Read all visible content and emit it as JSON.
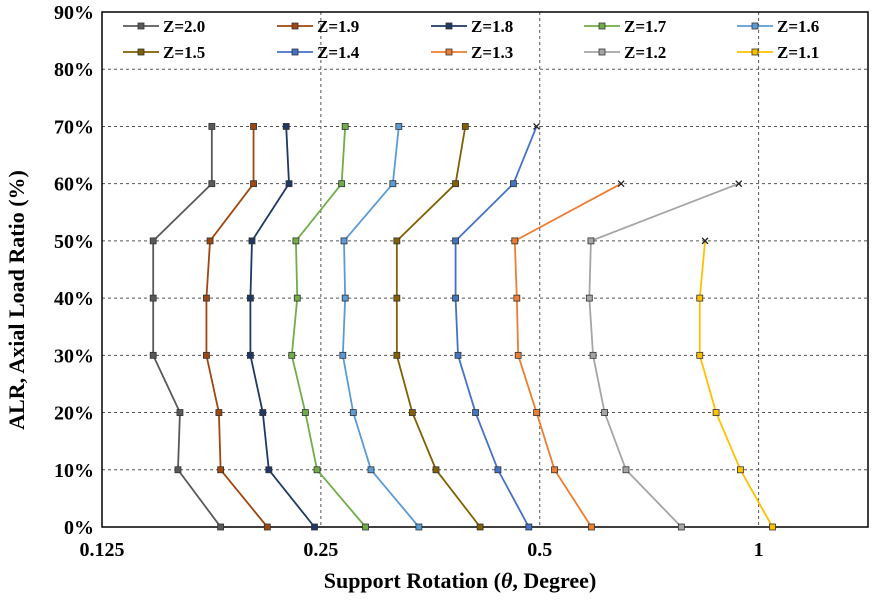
{
  "chart_data": {
    "type": "line",
    "xlabel_prefix": "Support Rotation (",
    "xlabel_symbol": "θ",
    "xlabel_suffix": ", Degree)",
    "ylabel": "ALR, Axial Load Ratio (%)",
    "xscale": "log2",
    "xlim": [
      0.125,
      1.414
    ],
    "ylim": [
      0,
      90
    ],
    "xticks": [
      {
        "value": 0.125,
        "label": "0.125"
      },
      {
        "value": 0.25,
        "label": "0.25"
      },
      {
        "value": 0.5,
        "label": "0.5"
      },
      {
        "value": 1,
        "label": "1"
      }
    ],
    "yticks": [
      {
        "value": 0,
        "label": "0%"
      },
      {
        "value": 10,
        "label": "10%"
      },
      {
        "value": 20,
        "label": "20%"
      },
      {
        "value": 30,
        "label": "30%"
      },
      {
        "value": 40,
        "label": "40%"
      },
      {
        "value": 50,
        "label": "50%"
      },
      {
        "value": 60,
        "label": "60%"
      },
      {
        "value": 70,
        "label": "70%"
      },
      {
        "value": 80,
        "label": "80%"
      },
      {
        "value": 90,
        "label": "90%"
      }
    ],
    "grid": "dashed",
    "legend_position": "top",
    "y": [
      0,
      10,
      20,
      30,
      40,
      50,
      60,
      70
    ],
    "series": [
      {
        "name": "Z=2.0",
        "color": "#595959",
        "x": [
          0.182,
          0.159,
          0.16,
          0.147,
          0.147,
          0.147,
          0.177,
          0.177
        ],
        "last_marker": "square"
      },
      {
        "name": "Z=1.9",
        "color": "#a0460f",
        "x": [
          0.211,
          0.182,
          0.181,
          0.174,
          0.174,
          0.176,
          0.202,
          0.202
        ],
        "last_marker": "square"
      },
      {
        "name": "Z=1.8",
        "color": "#1f3864",
        "x": [
          0.245,
          0.212,
          0.208,
          0.2,
          0.2,
          0.201,
          0.226,
          0.224
        ],
        "last_marker": "square"
      },
      {
        "name": "Z=1.7",
        "color": "#70ad47",
        "x": [
          0.288,
          0.247,
          0.238,
          0.228,
          0.232,
          0.231,
          0.267,
          0.27
        ],
        "last_marker": "square"
      },
      {
        "name": "Z=1.6",
        "color": "#5b9bd5",
        "x": [
          0.341,
          0.293,
          0.277,
          0.268,
          0.27,
          0.269,
          0.314,
          0.32
        ],
        "last_marker": "square"
      },
      {
        "name": "Z=1.5",
        "color": "#806000",
        "x": [
          0.414,
          0.36,
          0.334,
          0.318,
          0.318,
          0.318,
          0.383,
          0.395
        ],
        "last_marker": "square"
      },
      {
        "name": "Z=1.4",
        "color": "#4472c4",
        "x": [
          0.483,
          0.438,
          0.408,
          0.386,
          0.383,
          0.383,
          0.46,
          0.495
        ],
        "last_marker": "x"
      },
      {
        "name": "Z=1.3",
        "color": "#ed7d31",
        "x": [
          0.589,
          0.524,
          0.495,
          0.467,
          0.465,
          0.462,
          0.647,
          null
        ],
        "last_marker": "x"
      },
      {
        "name": "Z=1.2",
        "color": "#a5a5a5",
        "x": [
          0.783,
          0.657,
          0.614,
          0.592,
          0.585,
          0.588,
          0.939,
          null
        ],
        "last_marker": "x"
      },
      {
        "name": "Z=1.1",
        "color": "#ffc000",
        "x": [
          1.045,
          0.944,
          0.874,
          0.83,
          0.83,
          0.844,
          null,
          null
        ],
        "last_marker": "x"
      }
    ]
  }
}
